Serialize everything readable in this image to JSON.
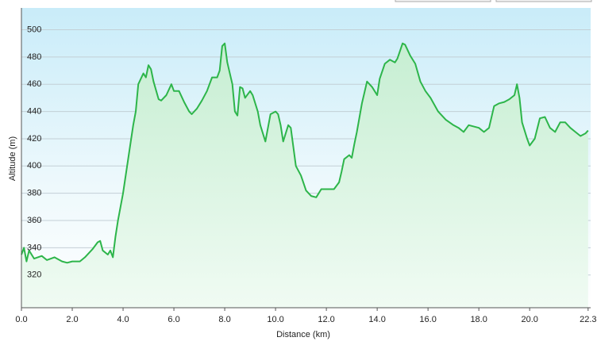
{
  "chart_data": {
    "type": "area",
    "xlabel": "Distance  (km)",
    "ylabel": "Altitude (m)",
    "color": "#2db54a",
    "grid": true,
    "xlim": [
      0,
      22.4
    ],
    "ylim": [
      296,
      516
    ],
    "xticks": [
      {
        "value": 0,
        "label": "0.0"
      },
      {
        "value": 2,
        "label": "2.0"
      },
      {
        "value": 4,
        "label": "4.0"
      },
      {
        "value": 6,
        "label": "6.0"
      },
      {
        "value": 8,
        "label": "8.0"
      },
      {
        "value": 10,
        "label": "10.0"
      },
      {
        "value": 12,
        "label": "12.0"
      },
      {
        "value": 14,
        "label": "14.0"
      },
      {
        "value": 16,
        "label": "16.0"
      },
      {
        "value": 18,
        "label": "18.0"
      },
      {
        "value": 20,
        "label": "20.0"
      },
      22.3
    ],
    "yticks": [
      320,
      340,
      360,
      380,
      400,
      420,
      440,
      460,
      480,
      500
    ],
    "x": [
      0.0,
      0.1,
      0.2,
      0.3,
      0.5,
      0.8,
      1.0,
      1.3,
      1.6,
      1.8,
      2.0,
      2.3,
      2.5,
      2.8,
      3.0,
      3.1,
      3.2,
      3.4,
      3.5,
      3.6,
      3.7,
      3.8,
      4.0,
      4.2,
      4.4,
      4.5,
      4.6,
      4.8,
      4.9,
      5.0,
      5.1,
      5.2,
      5.4,
      5.5,
      5.7,
      5.9,
      6.0,
      6.2,
      6.4,
      6.6,
      6.7,
      6.9,
      7.1,
      7.3,
      7.5,
      7.7,
      7.8,
      7.9,
      8.0,
      8.1,
      8.3,
      8.4,
      8.5,
      8.6,
      8.7,
      8.8,
      9.0,
      9.1,
      9.3,
      9.4,
      9.6,
      9.8,
      10.0,
      10.1,
      10.2,
      10.3,
      10.5,
      10.6,
      10.8,
      11.0,
      11.2,
      11.4,
      11.6,
      11.8,
      12.0,
      12.3,
      12.5,
      12.6,
      12.7,
      12.9,
      13.0,
      13.1,
      13.2,
      13.4,
      13.6,
      13.8,
      14.0,
      14.1,
      14.3,
      14.5,
      14.7,
      14.8,
      15.0,
      15.1,
      15.3,
      15.5,
      15.7,
      15.9,
      16.1,
      16.4,
      16.7,
      17.0,
      17.2,
      17.4,
      17.6,
      18.0,
      18.2,
      18.4,
      18.6,
      18.8,
      19.0,
      19.2,
      19.4,
      19.5,
      19.6,
      19.7,
      19.9,
      20.0,
      20.2,
      20.4,
      20.6,
      20.8,
      21.0,
      21.2,
      21.4,
      21.6,
      21.8,
      22.0,
      22.2,
      22.3
    ],
    "values": [
      335,
      340,
      330,
      338,
      332,
      334,
      331,
      333,
      330,
      329,
      330,
      330,
      333,
      339,
      344,
      345,
      338,
      335,
      338,
      333,
      348,
      360,
      380,
      405,
      430,
      440,
      460,
      468,
      465,
      474,
      471,
      462,
      449,
      448,
      452,
      460,
      455,
      455,
      447,
      440,
      438,
      442,
      448,
      455,
      465,
      465,
      470,
      488,
      490,
      476,
      460,
      440,
      437,
      458,
      457,
      450,
      455,
      452,
      440,
      430,
      418,
      438,
      440,
      438,
      430,
      418,
      430,
      428,
      400,
      393,
      382,
      378,
      377,
      383,
      383,
      383,
      388,
      396,
      405,
      408,
      406,
      416,
      425,
      446,
      462,
      458,
      452,
      464,
      475,
      478,
      476,
      479,
      490,
      489,
      481,
      475,
      462,
      455,
      450,
      440,
      434,
      430,
      428,
      425,
      430,
      428,
      425,
      428,
      444,
      446,
      447,
      449,
      452,
      460,
      450,
      432,
      420,
      415,
      420,
      435,
      436,
      428,
      425,
      432,
      432,
      428,
      425,
      422,
      424,
      426
    ]
  }
}
